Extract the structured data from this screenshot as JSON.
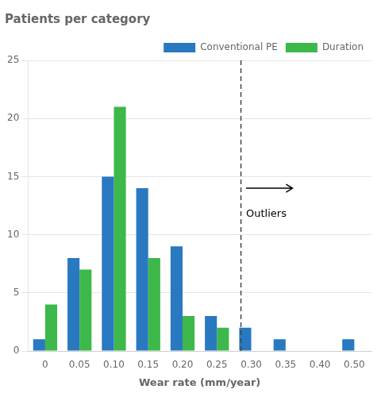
{
  "chart_data": {
    "type": "bar",
    "title": "Patients per category",
    "xlabel": "Wear rate (mm/year)",
    "categories": [
      "0",
      "0.05",
      "0.10",
      "0.15",
      "0.20",
      "0.25",
      "0.30",
      "0.35",
      "0.40",
      "0.50"
    ],
    "series": [
      {
        "name": "Conventional PE",
        "color": "#2979c0",
        "values": [
          1,
          8,
          15,
          14,
          9,
          3,
          2,
          1,
          0,
          1
        ]
      },
      {
        "name": "Duration",
        "color": "#3db84a",
        "values": [
          4,
          7,
          21,
          8,
          3,
          2,
          0,
          0,
          0,
          0
        ]
      }
    ],
    "ylim": [
      0,
      25
    ],
    "yticks": [
      0,
      5,
      10,
      15,
      20,
      25
    ],
    "grid": "y",
    "legend": "upper right",
    "annotations": [
      {
        "type": "vline",
        "x": 5.7,
        "line_style": "dashed"
      },
      {
        "type": "arrow",
        "x": [
          5.85,
          7.2
        ],
        "y": 14
      },
      {
        "type": "text",
        "text": "Outliers",
        "x": 5.85,
        "y": 12.2
      }
    ]
  }
}
